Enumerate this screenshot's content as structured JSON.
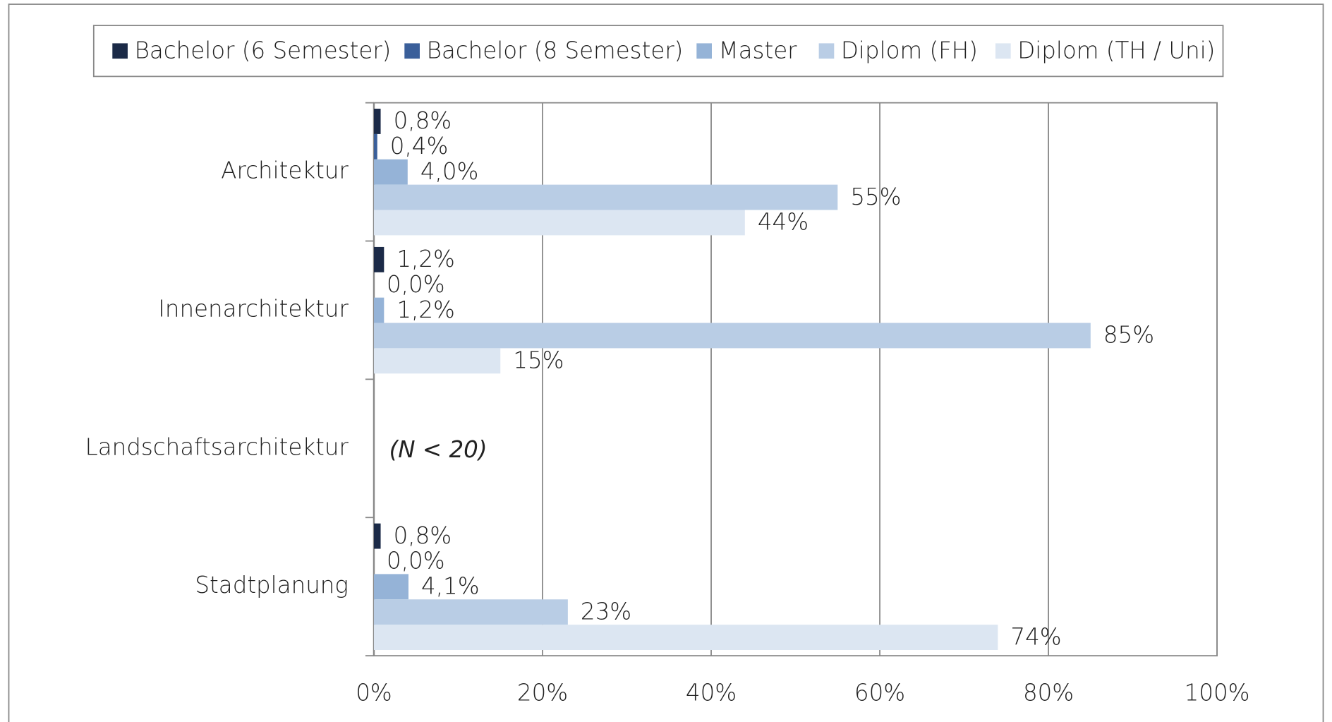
{
  "chart_data": {
    "type": "bar",
    "orientation": "horizontal",
    "categories": [
      "Architektur",
      "Innenarchitektur",
      "Landschaftsarchitektur",
      "Stadtplanung"
    ],
    "series": [
      {
        "name": "Bachelor (6 Semester)",
        "color": "#1b2a47",
        "values": [
          0.8,
          1.2,
          null,
          0.8
        ],
        "value_labels": [
          "0,8%",
          "1,2%",
          null,
          "0,8%"
        ]
      },
      {
        "name": "Bachelor (8 Semester)",
        "color": "#3a5f9a",
        "values": [
          0.4,
          0.0,
          null,
          0.0
        ],
        "value_labels": [
          "0,4%",
          "0,0%",
          null,
          "0,0%"
        ]
      },
      {
        "name": "Master",
        "color": "#95b3d7",
        "values": [
          4.0,
          1.2,
          null,
          4.1
        ],
        "value_labels": [
          "4,0%",
          "1,2%",
          null,
          "4,1%"
        ]
      },
      {
        "name": "Diplom (FH)",
        "color": "#b9cde5",
        "values": [
          55,
          85,
          null,
          23
        ],
        "value_labels": [
          "55%",
          "85%",
          null,
          "23%"
        ]
      },
      {
        "name": "Diplom (TH / Uni)",
        "color": "#dce6f2",
        "values": [
          44,
          15,
          null,
          74
        ],
        "value_labels": [
          "44%",
          "15%",
          null,
          "74%"
        ]
      }
    ],
    "annotation": "(N < 20)",
    "xlim": [
      0,
      100
    ],
    "xticks": [
      {
        "value": 0,
        "label": "0%"
      },
      {
        "value": 20,
        "label": "20%"
      },
      {
        "value": 40,
        "label": "40%"
      },
      {
        "value": 60,
        "label": "60%"
      },
      {
        "value": 80,
        "label": "80%"
      },
      {
        "value": 100,
        "label": "100%"
      }
    ],
    "grid": true,
    "legend": "top"
  }
}
